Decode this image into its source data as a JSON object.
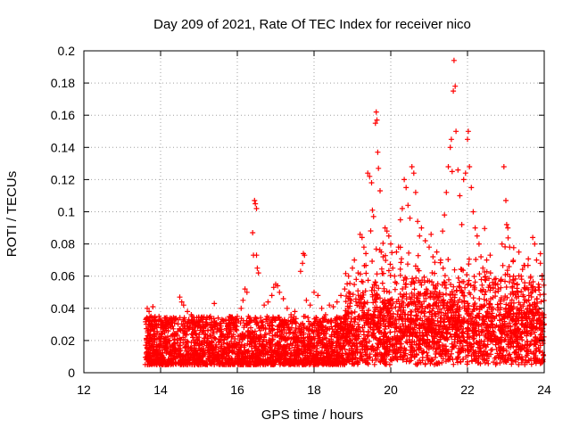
{
  "chart_data": {
    "type": "scatter",
    "title": "Day 209 of 2021, Rate Of TEC Index for receiver nico",
    "xlabel": "GPS time / hours",
    "ylabel": "ROTI / TECUs",
    "xlim": [
      12,
      24
    ],
    "ylim": [
      0,
      0.2
    ],
    "xticks": [
      12,
      14,
      16,
      18,
      20,
      22,
      24
    ],
    "xtick_labels": [
      "12",
      "14",
      "16",
      "18",
      "20",
      "22",
      "24"
    ],
    "yticks": [
      0,
      0.02,
      0.04,
      0.06,
      0.08,
      0.1,
      0.12,
      0.14,
      0.16,
      0.18,
      0.2
    ],
    "ytick_labels": [
      "0",
      "0.02",
      "0.04",
      "0.06",
      "0.08",
      "0.1",
      "0.12",
      "0.14",
      "0.16",
      "0.18",
      "0.2"
    ],
    "grid": true,
    "marker": "+",
    "color": "#ff0000",
    "series": [
      {
        "name": "ROTI",
        "points": [
          [
            13.65,
            0.04
          ],
          [
            13.7,
            0.038
          ],
          [
            13.75,
            0.035
          ],
          [
            13.8,
            0.041
          ],
          [
            13.85,
            0.033
          ],
          [
            13.9,
            0.03
          ],
          [
            14.0,
            0.028
          ],
          [
            14.1,
            0.034
          ],
          [
            14.2,
            0.026
          ],
          [
            14.3,
            0.031
          ],
          [
            14.4,
            0.033
          ],
          [
            14.5,
            0.047
          ],
          [
            14.55,
            0.044
          ],
          [
            14.6,
            0.042
          ],
          [
            14.7,
            0.038
          ],
          [
            14.8,
            0.036
          ],
          [
            14.9,
            0.03
          ],
          [
            15.0,
            0.032
          ],
          [
            15.1,
            0.029
          ],
          [
            15.2,
            0.031
          ],
          [
            15.3,
            0.035
          ],
          [
            15.4,
            0.043
          ],
          [
            15.5,
            0.034
          ],
          [
            15.6,
            0.033
          ],
          [
            15.8,
            0.03
          ],
          [
            15.9,
            0.028
          ],
          [
            16.0,
            0.035
          ],
          [
            16.1,
            0.04
          ],
          [
            16.15,
            0.045
          ],
          [
            16.2,
            0.052
          ],
          [
            16.25,
            0.05
          ],
          [
            16.4,
            0.087
          ],
          [
            16.42,
            0.073
          ],
          [
            16.45,
            0.107
          ],
          [
            16.47,
            0.105
          ],
          [
            16.5,
            0.102
          ],
          [
            16.52,
            0.065
          ],
          [
            16.55,
            0.062
          ],
          [
            16.5,
            0.073
          ],
          [
            16.7,
            0.042
          ],
          [
            16.8,
            0.044
          ],
          [
            16.9,
            0.048
          ],
          [
            16.95,
            0.053
          ],
          [
            17.0,
            0.055
          ],
          [
            17.05,
            0.054
          ],
          [
            17.1,
            0.05
          ],
          [
            17.2,
            0.046
          ],
          [
            17.3,
            0.04
          ],
          [
            17.4,
            0.036
          ],
          [
            17.5,
            0.038
          ],
          [
            17.65,
            0.063
          ],
          [
            17.7,
            0.068
          ],
          [
            17.72,
            0.074
          ],
          [
            17.75,
            0.073
          ],
          [
            17.8,
            0.045
          ],
          [
            17.9,
            0.042
          ],
          [
            18.0,
            0.05
          ],
          [
            18.1,
            0.048
          ],
          [
            18.2,
            0.04
          ],
          [
            18.3,
            0.036
          ],
          [
            18.4,
            0.042
          ],
          [
            18.5,
            0.041
          ],
          [
            18.6,
            0.044
          ],
          [
            18.7,
            0.048
          ],
          [
            18.8,
            0.052
          ],
          [
            18.9,
            0.06
          ],
          [
            19.0,
            0.065
          ],
          [
            19.05,
            0.07
          ],
          [
            19.1,
            0.058
          ],
          [
            19.15,
            0.062
          ],
          [
            19.2,
            0.086
          ],
          [
            19.25,
            0.084
          ],
          [
            19.3,
            0.078
          ],
          [
            19.35,
            0.074
          ],
          [
            19.4,
            0.124
          ],
          [
            19.45,
            0.122
          ],
          [
            19.5,
            0.118
          ],
          [
            19.52,
            0.101
          ],
          [
            19.55,
            0.097
          ],
          [
            19.6,
            0.155
          ],
          [
            19.62,
            0.162
          ],
          [
            19.64,
            0.157
          ],
          [
            19.66,
            0.137
          ],
          [
            19.68,
            0.127
          ],
          [
            19.72,
            0.113
          ],
          [
            19.75,
            0.075
          ],
          [
            19.8,
            0.072
          ],
          [
            19.85,
            0.09
          ],
          [
            19.9,
            0.088
          ],
          [
            19.95,
            0.085
          ],
          [
            20.0,
            0.08
          ],
          [
            20.05,
            0.065
          ],
          [
            20.1,
            0.06
          ],
          [
            20.15,
            0.075
          ],
          [
            20.2,
            0.078
          ],
          [
            20.25,
            0.095
          ],
          [
            20.3,
            0.102
          ],
          [
            20.35,
            0.12
          ],
          [
            20.4,
            0.115
          ],
          [
            20.45,
            0.104
          ],
          [
            20.5,
            0.096
          ],
          [
            20.55,
            0.128
          ],
          [
            20.6,
            0.124
          ],
          [
            20.65,
            0.112
          ],
          [
            20.7,
            0.094
          ],
          [
            20.75,
            0.085
          ],
          [
            20.8,
            0.09
          ],
          [
            20.9,
            0.082
          ],
          [
            21.0,
            0.078
          ],
          [
            21.05,
            0.086
          ],
          [
            21.1,
            0.072
          ],
          [
            21.2,
            0.075
          ],
          [
            21.3,
            0.07
          ],
          [
            21.35,
            0.088
          ],
          [
            21.4,
            0.098
          ],
          [
            21.45,
            0.112
          ],
          [
            21.5,
            0.128
          ],
          [
            21.55,
            0.14
          ],
          [
            21.58,
            0.145
          ],
          [
            21.6,
            0.125
          ],
          [
            21.63,
            0.175
          ],
          [
            21.65,
            0.194
          ],
          [
            21.68,
            0.178
          ],
          [
            21.7,
            0.15
          ],
          [
            21.75,
            0.126
          ],
          [
            21.8,
            0.11
          ],
          [
            21.85,
            0.092
          ],
          [
            21.9,
            0.12
          ],
          [
            21.95,
            0.124
          ],
          [
            22.0,
            0.145
          ],
          [
            22.02,
            0.15
          ],
          [
            22.05,
            0.128
          ],
          [
            22.1,
            0.115
          ],
          [
            22.15,
            0.1
          ],
          [
            22.2,
            0.09
          ],
          [
            22.25,
            0.085
          ],
          [
            22.3,
            0.08
          ],
          [
            22.35,
            0.072
          ],
          [
            22.4,
            0.065
          ],
          [
            22.5,
            0.07
          ],
          [
            22.6,
            0.062
          ],
          [
            22.7,
            0.058
          ],
          [
            22.8,
            0.052
          ],
          [
            22.9,
            0.08
          ],
          [
            22.95,
            0.128
          ],
          [
            23.0,
            0.107
          ],
          [
            23.02,
            0.092
          ],
          [
            23.05,
            0.09
          ],
          [
            23.1,
            0.078
          ],
          [
            23.2,
            0.06
          ],
          [
            23.3,
            0.055
          ],
          [
            23.4,
            0.06
          ],
          [
            23.5,
            0.052
          ],
          [
            23.6,
            0.048
          ],
          [
            23.7,
            0.084
          ],
          [
            23.75,
            0.08
          ],
          [
            23.8,
            0.07
          ],
          [
            23.85,
            0.055
          ],
          [
            23.9,
            0.068
          ],
          [
            23.95,
            0.058
          ]
        ],
        "noise": {
          "x_range": [
            13.6,
            24.0
          ],
          "count": 4200,
          "notes": "dense low-level ROTI band between ~0.005 and ~0.045 TECUs"
        }
      }
    ]
  }
}
